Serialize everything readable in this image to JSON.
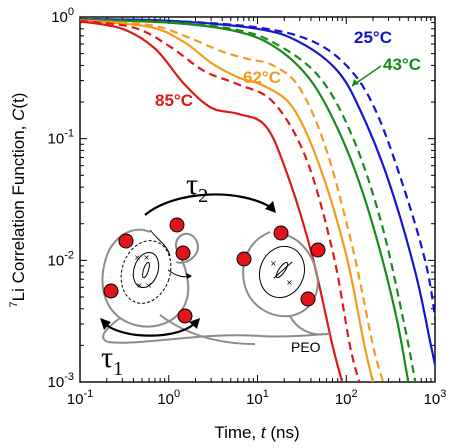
{
  "chart_data": {
    "type": "line",
    "xscale": "log",
    "yscale": "log",
    "xlim": [
      0.1,
      1000
    ],
    "ylim": [
      0.001,
      1
    ],
    "xlabel_prefix": "Time, ",
    "xlabel_var": "t",
    "xlabel_unit": " (ns)",
    "ylabel_sup": "7",
    "ylabel_text": "Li Correlation Function, ",
    "ylabel_var": "C",
    "ylabel_paren": "(t)",
    "x_ticks": [
      {
        "value": 0.1,
        "base": "10",
        "exp": "-1"
      },
      {
        "value": 1,
        "base": "10",
        "exp": "0"
      },
      {
        "value": 10,
        "base": "10",
        "exp": "1"
      },
      {
        "value": 100,
        "base": "10",
        "exp": "2"
      },
      {
        "value": 1000,
        "base": "10",
        "exp": "3"
      }
    ],
    "y_ticks": [
      {
        "value": 0.001,
        "base": "10",
        "exp": "-3"
      },
      {
        "value": 0.01,
        "base": "10",
        "exp": "-2"
      },
      {
        "value": 0.1,
        "base": "10",
        "exp": "-1"
      },
      {
        "value": 1,
        "base": "10",
        "exp": "0"
      }
    ],
    "series": [
      {
        "temperature": "25°C",
        "color": "#1414d6",
        "style": "solid",
        "decay_type": "single",
        "points": [
          [
            0.1,
            0.96
          ],
          [
            1,
            0.93
          ],
          [
            10,
            0.8
          ],
          [
            30,
            0.62
          ],
          [
            80,
            0.36
          ],
          [
            150,
            0.16
          ],
          [
            300,
            0.045
          ],
          [
            600,
            0.008
          ],
          [
            900,
            0.002
          ],
          [
            1100,
            0.001
          ]
        ]
      },
      {
        "temperature": "25°C",
        "color": "#1414d6",
        "style": "dashed",
        "decay_type": "single",
        "points": [
          [
            0.1,
            0.96
          ],
          [
            1,
            0.93
          ],
          [
            10,
            0.82
          ],
          [
            40,
            0.64
          ],
          [
            100,
            0.4
          ],
          [
            200,
            0.19
          ],
          [
            400,
            0.05
          ],
          [
            800,
            0.009
          ],
          [
            1100,
            0.002
          ],
          [
            1300,
            0.001
          ]
        ]
      },
      {
        "temperature": "43°C",
        "color": "#1a8a1a",
        "style": "solid",
        "decay_type": "single",
        "points": [
          [
            0.1,
            0.95
          ],
          [
            1,
            0.9
          ],
          [
            5,
            0.78
          ],
          [
            15,
            0.58
          ],
          [
            40,
            0.3
          ],
          [
            90,
            0.1
          ],
          [
            180,
            0.025
          ],
          [
            350,
            0.004
          ],
          [
            500,
            0.001
          ]
        ]
      },
      {
        "temperature": "43°C",
        "color": "#1a8a1a",
        "style": "dashed",
        "decay_type": "single",
        "points": [
          [
            0.1,
            0.95
          ],
          [
            1,
            0.91
          ],
          [
            5,
            0.8
          ],
          [
            15,
            0.62
          ],
          [
            50,
            0.32
          ],
          [
            120,
            0.1
          ],
          [
            250,
            0.02
          ],
          [
            450,
            0.003
          ],
          [
            600,
            0.001
          ]
        ]
      },
      {
        "temperature": "62°C",
        "color": "#f59a1d",
        "style": "solid",
        "decay_type": "double",
        "points": [
          [
            0.1,
            0.94
          ],
          [
            0.6,
            0.83
          ],
          [
            1.5,
            0.62
          ],
          [
            3,
            0.42
          ],
          [
            6,
            0.32
          ],
          [
            12,
            0.27
          ],
          [
            25,
            0.18
          ],
          [
            50,
            0.06
          ],
          [
            100,
            0.011
          ],
          [
            160,
            0.002
          ],
          [
            200,
            0.001
          ]
        ]
      },
      {
        "temperature": "62°C",
        "color": "#f59a1d",
        "style": "dashed",
        "decay_type": "double",
        "points": [
          [
            0.1,
            0.94
          ],
          [
            0.6,
            0.86
          ],
          [
            1.5,
            0.7
          ],
          [
            4,
            0.52
          ],
          [
            8,
            0.45
          ],
          [
            15,
            0.4
          ],
          [
            30,
            0.26
          ],
          [
            60,
            0.08
          ],
          [
            120,
            0.012
          ],
          [
            200,
            0.002
          ],
          [
            260,
            0.001
          ]
        ]
      },
      {
        "temperature": "85°C",
        "color": "#e01818",
        "style": "solid",
        "decay_type": "double",
        "points": [
          [
            0.1,
            0.92
          ],
          [
            0.3,
            0.8
          ],
          [
            0.7,
            0.55
          ],
          [
            1.5,
            0.28
          ],
          [
            3,
            0.18
          ],
          [
            6,
            0.16
          ],
          [
            12,
            0.13
          ],
          [
            20,
            0.06
          ],
          [
            40,
            0.012
          ],
          [
            70,
            0.002
          ],
          [
            90,
            0.001
          ]
        ]
      },
      {
        "temperature": "85°C",
        "color": "#e01818",
        "style": "dashed",
        "decay_type": "double",
        "points": [
          [
            0.1,
            0.93
          ],
          [
            0.4,
            0.82
          ],
          [
            1,
            0.58
          ],
          [
            2.5,
            0.36
          ],
          [
            6,
            0.28
          ],
          [
            15,
            0.2
          ],
          [
            35,
            0.07
          ],
          [
            70,
            0.012
          ],
          [
            110,
            0.002
          ],
          [
            140,
            0.001
          ]
        ]
      }
    ],
    "labels": {
      "t25": {
        "text": "25°C",
        "color": "#1414d6"
      },
      "t43": {
        "text": "43°C",
        "color": "#1a8a1a"
      },
      "t62": {
        "text": "62°C",
        "color": "#f59a1d"
      },
      "t85": {
        "text": "85°C",
        "color": "#e01818"
      }
    },
    "inset": {
      "tau2_symbol": "τ",
      "tau2_subscript": "2",
      "tau1_symbol": "τ",
      "tau1_subscript": "1",
      "polymer_label": "PEO",
      "particle_color": "#e0141a",
      "chain_color": "#8c8c8c"
    }
  }
}
